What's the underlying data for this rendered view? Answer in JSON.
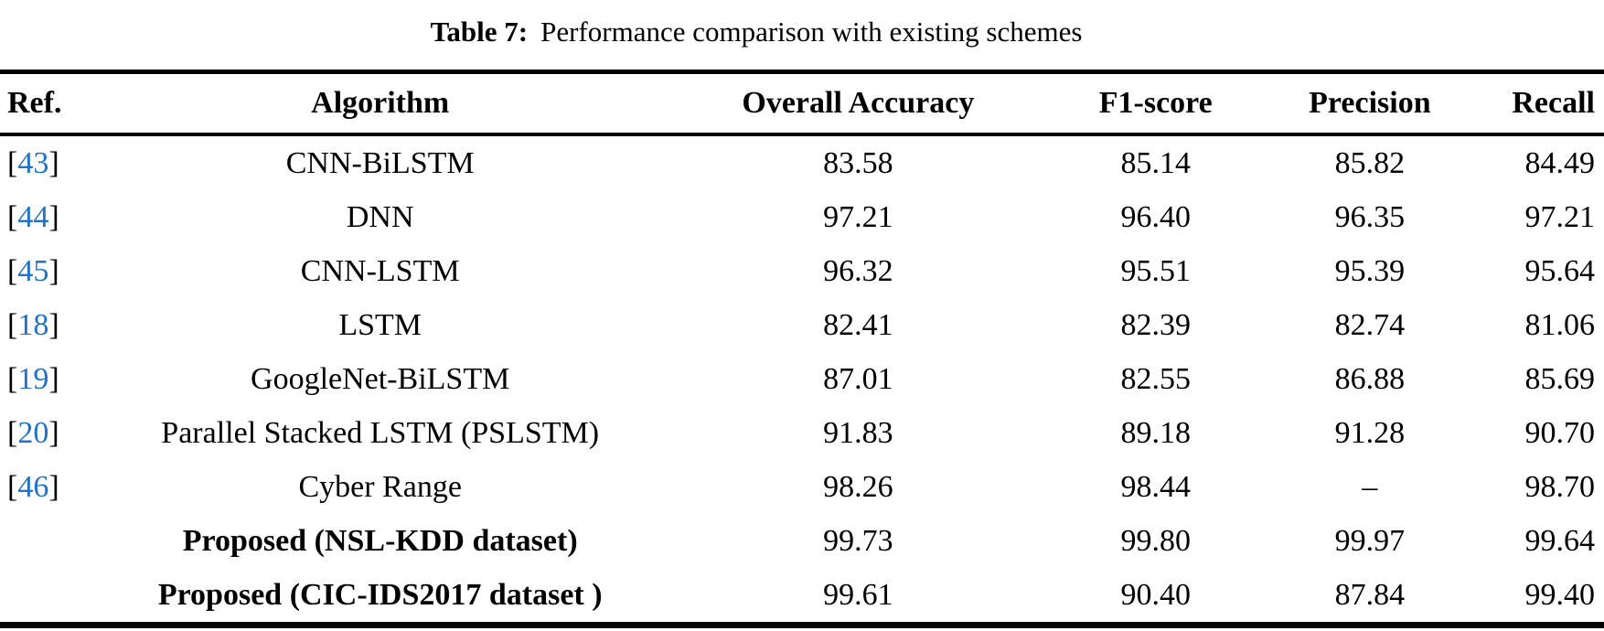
{
  "colors": {
    "citation_blue": "#2273c8",
    "text": "#000000",
    "background": "#ffffff",
    "rules": "#000000"
  },
  "caption": {
    "label": "Table 7:",
    "text": "Performance comparison with existing schemes"
  },
  "table": {
    "bracket_open": "[",
    "bracket_close": "]",
    "columns": [
      "Ref.",
      "Algorithm",
      "Overall Accuracy",
      "F1-score",
      "Precision",
      "Recall"
    ],
    "rows": [
      {
        "ref": "43",
        "algorithm": "CNN-BiLSTM",
        "overall_accuracy": "83.58",
        "f1_score": "85.14",
        "precision": "85.82",
        "recall": "84.49"
      },
      {
        "ref": "44",
        "algorithm": "DNN",
        "overall_accuracy": "97.21",
        "f1_score": "96.40",
        "precision": "96.35",
        "recall": "97.21"
      },
      {
        "ref": "45",
        "algorithm": "CNN-LSTM",
        "overall_accuracy": "96.32",
        "f1_score": "95.51",
        "precision": "95.39",
        "recall": "95.64"
      },
      {
        "ref": "18",
        "algorithm": "LSTM",
        "overall_accuracy": "82.41",
        "f1_score": "82.39",
        "precision": "82.74",
        "recall": "81.06"
      },
      {
        "ref": "19",
        "algorithm": "GoogleNet-BiLSTM",
        "overall_accuracy": "87.01",
        "f1_score": "82.55",
        "precision": "86.88",
        "recall": "85.69"
      },
      {
        "ref": "20",
        "algorithm": "Parallel Stacked LSTM (PSLSTM)",
        "overall_accuracy": "91.83",
        "f1_score": "89.18",
        "precision": "91.28",
        "recall": "90.70"
      },
      {
        "ref": "46",
        "algorithm": "Cyber Range",
        "overall_accuracy": "98.26",
        "f1_score": "98.44",
        "precision": "–",
        "recall": "98.70"
      },
      {
        "ref": "",
        "algorithm": "Proposed (NSL-KDD dataset)",
        "overall_accuracy": "99.73",
        "f1_score": "99.80",
        "precision": "99.97",
        "recall": "99.64"
      },
      {
        "ref": "",
        "algorithm": "Proposed (CIC-IDS2017 dataset )",
        "overall_accuracy": "99.61",
        "f1_score": "90.40",
        "precision": "87.84",
        "recall": "99.40"
      }
    ]
  }
}
